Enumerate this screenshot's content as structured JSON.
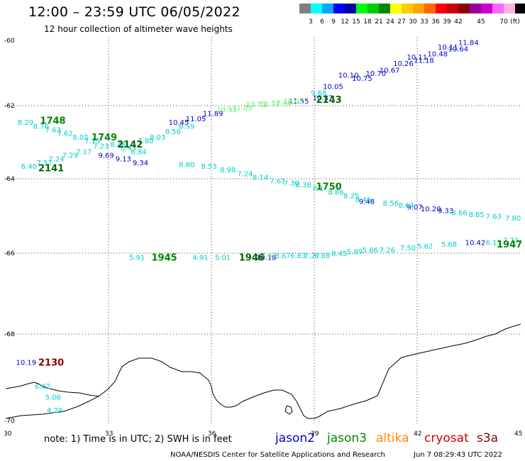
{
  "title": "12:00 – 23:59 UTC 06/05/2022",
  "subtitle": "12 hour collection of altimeter wave heights",
  "legend": {
    "unit": "(ft)",
    "colors": [
      "#808080",
      "#00ffff",
      "#00a8ff",
      "#0000ff",
      "#0000a0",
      "#00ff00",
      "#00cc00",
      "#008800",
      "#ffff00",
      "#ffcc00",
      "#ffa500",
      "#ff6600",
      "#ff0000",
      "#cc0000",
      "#880000",
      "#990099",
      "#cc00cc",
      "#ff66ff",
      "#ffb0e0",
      "#000000"
    ],
    "labels": [
      "3",
      "6",
      "9",
      "12",
      "15",
      "18",
      "21",
      "24",
      "27",
      "30",
      "33",
      "36",
      "39",
      "42",
      "45",
      "70"
    ]
  },
  "axes": {
    "lat_labels": [
      "-60",
      "-62",
      "-64",
      "-66",
      "-68",
      "-70"
    ],
    "lon_labels": [
      "30",
      "33",
      "36",
      "39",
      "42",
      "45"
    ]
  },
  "tracks": [
    {
      "color": "#0000cc",
      "points": [
        {
          "text": "11.84",
          "lon": 43.2,
          "lat": -60.05
        },
        {
          "text": "10.11",
          "lon": 42.6,
          "lat": -60.2
        },
        {
          "text": "10.64",
          "lon": 42.9,
          "lat": -60.25
        },
        {
          "text": "10.48",
          "lon": 42.3,
          "lat": -60.4
        },
        {
          "text": "10.11",
          "lon": 41.7,
          "lat": -60.5
        },
        {
          "text": "11.18",
          "lon": 41.9,
          "lat": -60.6
        },
        {
          "text": "10.26",
          "lon": 41.3,
          "lat": -60.7
        },
        {
          "text": "10.67",
          "lon": 40.9,
          "lat": -60.9
        },
        {
          "text": "10.70",
          "lon": 40.5,
          "lat": -61.0
        },
        {
          "text": "10.75",
          "lon": 40.1,
          "lat": -61.15
        },
        {
          "text": "10.10",
          "lon": 39.7,
          "lat": -61.05
        },
        {
          "text": "10.05",
          "lon": 39.25,
          "lat": -61.4
        },
        {
          "text": "10.37",
          "lon": 38.95,
          "lat": -61.75
        },
        {
          "text": "11.55",
          "lon": 38.25,
          "lat": -61.85
        },
        {
          "text": "10.45",
          "lon": 34.75,
          "lat": -62.45
        },
        {
          "text": "11.05",
          "lon": 35.25,
          "lat": -62.35
        },
        {
          "text": "11.89",
          "lon": 35.75,
          "lat": -62.2
        },
        {
          "text": "9.69",
          "lon": 32.7,
          "lat": -63.35
        },
        {
          "text": "9.13",
          "lon": 33.2,
          "lat": -63.45
        },
        {
          "text": "9.34",
          "lon": 33.7,
          "lat": -63.55
        },
        {
          "text": "9.48",
          "lon": 40.3,
          "lat": -64.6
        },
        {
          "text": "9.07",
          "lon": 41.7,
          "lat": -64.75
        },
        {
          "text": "10.20",
          "lon": 42.1,
          "lat": -64.8
        },
        {
          "text": "9.33",
          "lon": 42.6,
          "lat": -64.85
        },
        {
          "text": "10.42",
          "lon": 43.4,
          "lat": -65.7
        },
        {
          "text": "10.19",
          "lon": 30.3,
          "lat": -68.65
        },
        {
          "text": "10.18",
          "lon": 37.3,
          "lat": -66.1
        }
      ]
    },
    {
      "color": "#00cccc",
      "points": [
        {
          "text": "9.68",
          "lon": 38.9,
          "lat": -61.6
        },
        {
          "text": "8.29",
          "lon": 30.35,
          "lat": -62.45
        },
        {
          "text": "8.76",
          "lon": 30.8,
          "lat": -62.55
        },
        {
          "text": "7.63",
          "lon": 31.15,
          "lat": -62.65
        },
        {
          "text": "7.62",
          "lon": 31.5,
          "lat": -62.75
        },
        {
          "text": "8.02",
          "lon": 31.95,
          "lat": -62.85
        },
        {
          "text": "7.15",
          "lon": 32.3,
          "lat": -62.95
        },
        {
          "text": "7.23",
          "lon": 32.55,
          "lat": -63.1
        },
        {
          "text": "7.17",
          "lon": 32.05,
          "lat": -63.25
        },
        {
          "text": "7.29",
          "lon": 31.65,
          "lat": -63.35
        },
        {
          "text": "7.24",
          "lon": 31.25,
          "lat": -63.45
        },
        {
          "text": "7.57",
          "lon": 30.9,
          "lat": -63.55
        },
        {
          "text": "6.40",
          "lon": 30.45,
          "lat": -63.65
        },
        {
          "text": "8.48",
          "lon": 33.05,
          "lat": -63.05
        },
        {
          "text": "8.43",
          "lon": 33.35,
          "lat": -63.15
        },
        {
          "text": "7.80",
          "lon": 33.85,
          "lat": -62.95
        },
        {
          "text": "8.03",
          "lon": 34.2,
          "lat": -62.85
        },
        {
          "text": "8.56",
          "lon": 34.65,
          "lat": -62.7
        },
        {
          "text": "8.59",
          "lon": 35.05,
          "lat": -62.55
        },
        {
          "text": "6.84",
          "lon": 33.65,
          "lat": -63.25
        },
        {
          "text": "8.80",
          "lon": 35.05,
          "lat": -63.6
        },
        {
          "text": "8.53",
          "lon": 35.7,
          "lat": -63.65
        },
        {
          "text": "8.98",
          "lon": 36.25,
          "lat": -63.75
        },
        {
          "text": "7.24",
          "lon": 36.75,
          "lat": -63.85
        },
        {
          "text": "8.14",
          "lon": 37.2,
          "lat": -63.95
        },
        {
          "text": "7.61",
          "lon": 37.7,
          "lat": -64.05
        },
        {
          "text": "7.30",
          "lon": 38.1,
          "lat": -64.1
        },
        {
          "text": "8.38",
          "lon": 38.45,
          "lat": -64.15
        },
        {
          "text": "8.1",
          "lon": 38.95,
          "lat": -64.25
        },
        {
          "text": "8.86",
          "lon": 39.4,
          "lat": -64.35
        },
        {
          "text": "8.25",
          "lon": 39.85,
          "lat": -64.45
        },
        {
          "text": "8.46",
          "lon": 40.2,
          "lat": -64.55
        },
        {
          "text": "8.56",
          "lon": 41.0,
          "lat": -64.65
        },
        {
          "text": "8.64",
          "lon": 41.45,
          "lat": -64.7
        },
        {
          "text": "8.66",
          "lon": 43.0,
          "lat": -64.9
        },
        {
          "text": "8.85",
          "lon": 43.5,
          "lat": -64.95
        },
        {
          "text": "7.63",
          "lon": 44.0,
          "lat": -65.0
        },
        {
          "text": "7.80",
          "lon": 44.6,
          "lat": -65.05
        },
        {
          "text": "5.91",
          "lon": 33.6,
          "lat": -66.1
        },
        {
          "text": "4.91",
          "lon": 35.45,
          "lat": -66.1
        },
        {
          "text": "5.01",
          "lon": 36.1,
          "lat": -66.1
        },
        {
          "text": "8.67",
          "lon": 37.85,
          "lat": -66.05
        },
        {
          "text": "6.83",
          "lon": 38.3,
          "lat": -66.05
        },
        {
          "text": "7.27",
          "lon": 38.7,
          "lat": -66.05
        },
        {
          "text": "6.88",
          "lon": 39.0,
          "lat": -66.05
        },
        {
          "text": "8.45",
          "lon": 39.5,
          "lat": -66.0
        },
        {
          "text": "5.89",
          "lon": 39.95,
          "lat": -65.95
        },
        {
          "text": "5.66",
          "lon": 40.4,
          "lat": -65.9
        },
        {
          "text": "7.26",
          "lon": 40.9,
          "lat": -65.9
        },
        {
          "text": "7.50",
          "lon": 41.5,
          "lat": -65.85
        },
        {
          "text": "5.62",
          "lon": 42.0,
          "lat": -65.8
        },
        {
          "text": "5.68",
          "lon": 42.7,
          "lat": -65.75
        },
        {
          "text": "6.13",
          "lon": 44.0,
          "lat": -65.7
        },
        {
          "text": "7.73",
          "lon": 44.5,
          "lat": -65.65
        },
        {
          "text": "6.62",
          "lon": 30.85,
          "lat": -69.2
        },
        {
          "text": "5.06",
          "lon": 31.15,
          "lat": -69.45
        },
        {
          "text": "4.29",
          "lon": 31.2,
          "lat": -69.75
        }
      ]
    },
    {
      "color": "#66ee66",
      "points": [
        {
          "text": "10.93",
          "lon": 36.15,
          "lat": -62.1
        },
        {
          "text": "11.05",
          "lon": 36.6,
          "lat": -62.05
        },
        {
          "text": "13.73",
          "lon": 37.0,
          "lat": -61.95
        },
        {
          "text": "12.77",
          "lon": 37.4,
          "lat": -61.95
        },
        {
          "text": "12.48",
          "lon": 37.75,
          "lat": -61.9
        },
        {
          "text": "12.01",
          "lon": 38.1,
          "lat": -61.85
        }
      ]
    },
    {
      "color": "#66dd66",
      "points": [
        {
          "text": "7.67",
          "lon": 37.45,
          "lat": -66.05
        }
      ]
    }
  ],
  "pass_labels": [
    {
      "text": "1748",
      "color": "#008800",
      "lon": 31.25,
      "lat": -62.4
    },
    {
      "text": "1749",
      "color": "#008800",
      "lon": 32.75,
      "lat": -62.85
    },
    {
      "text": "2142",
      "color": "#006600",
      "lon": 33.5,
      "lat": -63.05
    },
    {
      "text": "2141",
      "color": "#006600",
      "lon": 31.2,
      "lat": -63.7
    },
    {
      "text": "2143",
      "color": "#006600",
      "lon": 39.3,
      "lat": -61.8
    },
    {
      "text": "1750",
      "color": "#008800",
      "lon": 39.3,
      "lat": -64.2
    },
    {
      "text": "1945",
      "color": "#008800",
      "lon": 34.5,
      "lat": -66.1
    },
    {
      "text": "1946",
      "color": "#006600",
      "lon": 37.05,
      "lat": -66.1
    },
    {
      "text": "1947",
      "color": "#008800",
      "lon": 44.6,
      "lat": -65.75
    },
    {
      "text": "2130",
      "color": "#880000",
      "lon": 31.2,
      "lat": -68.65
    }
  ],
  "note": "note:  1) Time is in UTC;  2) SWH is in feet",
  "satellites": [
    {
      "name": "jason2",
      "color": "#0000cc"
    },
    {
      "name": "jason3",
      "color": "#008800"
    },
    {
      "name": "altika",
      "color": "#ff8800"
    },
    {
      "name": "cryosat",
      "color": "#cc0000"
    },
    {
      "name": "s3a",
      "color": "#880000"
    }
  ],
  "credit": "NOAA/NESDIS Center for Satellite Applications and Research",
  "timestamp": "Jun  7 08:29:43 UTC 2022"
}
